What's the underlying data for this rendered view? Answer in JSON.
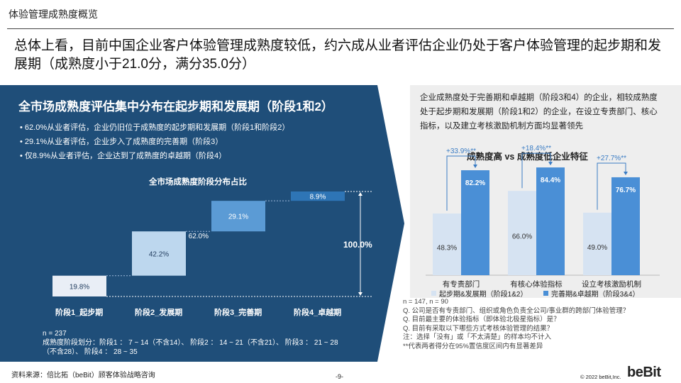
{
  "page": {
    "title": "体验管理成熟度概览"
  },
  "headline": "总体上看，目前中国企业客户体验管理成熟度较低，约六成从业者评估企业仍处于客户体验管理的起步期和发展期（成熟度小于21.0分，满分35.0分）",
  "left": {
    "title": "全市场成熟度评估集中分布在起步期和发展期（阶段1和2）",
    "bullets": [
      "62.0%从业者评估，企业仍旧位于成熟度的起步期和发展期（阶段1和阶段2）",
      "29.1%从业者评估，企业步入了成熟度的完善期（阶段3）",
      "仅8.9%从业者评估，企业达到了成熟度的卓越期（阶段4）"
    ],
    "chart_title": "全市场成熟度阶段分布占比",
    "notes": [
      "n = 237",
      "成熟度阶段划分：阶段1 ： 7 ~ 14（不含14）、 阶段2 ： 14 ~ 21（不含21）、 阶段3 ： 21 ~ 28",
      "（不含28）、 阶段4 ： 28 ~ 35"
    ]
  },
  "right": {
    "description": "企业成熟度处于完善期和卓越期（阶段3和4）的企业，相较成熟度处于起步期和发展期（阶段1和2）的企业，在设立专责部门、核心指标，以及建立考核激励机制方面均显著领先",
    "title": "成熟度高 vs 成熟度低企业特征",
    "survey_notes": [
      "n = 147, n = 90",
      "Q. 公司是否有专责部门、组织或角色负责全公司/事业群的跨部门体验管理？",
      "Q. 目前最主要的体验指标（即体验北极星指标）是？",
      "Q. 目前有采取以下哪些方式考核体验管理的结果？",
      "注：选择「没有」或「不太清楚」的样本均不计入",
      "**代表两者得分在95%置信度区间内有显著差异"
    ]
  },
  "footer": {
    "source": "资料来源：倍比拓（beBit）顾客体验战略咨询",
    "page_number": "-9-",
    "copyright": "© 2022 beBit,Inc.",
    "logo": "beBit"
  },
  "colors": {
    "panel": "#1f4e79",
    "stage1": "#e9eef6",
    "stage2": "#bdd7ee",
    "stage3": "#5b9bd5",
    "stage4": "#2e75b6",
    "low_group": "#d6e3f2",
    "high_group": "#4a8fd6",
    "bracket": "#3a7cc4"
  },
  "chart_data": [
    {
      "type": "bar",
      "title": "全市场成熟度阶段分布占比",
      "categories": [
        "阶段1_起步期",
        "阶段2_发展期",
        "阶段3_完善期",
        "阶段4_卓越期"
      ],
      "values": [
        19.8,
        42.2,
        29.1,
        8.9
      ],
      "value_labels": [
        "19.8%",
        "42.2%",
        "29.1%",
        "8.9%"
      ],
      "annotations": [
        {
          "label": "62.0%",
          "value": 62.0
        },
        {
          "label": "100.0%",
          "value": 100.0
        }
      ],
      "ylim": [
        0,
        100
      ]
    },
    {
      "type": "bar",
      "title": "成熟度高 vs 成熟度低企业特征",
      "categories": [
        "有专责部门",
        "有核心体验指标",
        "设立考核激励机制"
      ],
      "series": [
        {
          "name": "起步期&发展期（阶段1&2）",
          "values": [
            48.3,
            66.0,
            49.0
          ],
          "labels": [
            "48.3%",
            "66.0%",
            "49.0%"
          ]
        },
        {
          "name": "完善期&卓越期（阶段3&4）",
          "values": [
            82.2,
            84.4,
            76.7
          ],
          "labels": [
            "82.2%",
            "84.4%",
            "76.7%"
          ]
        }
      ],
      "differences": [
        "+33.9%**",
        "+18.4%**",
        "+27.7%**"
      ],
      "ylim": [
        0,
        100
      ]
    }
  ]
}
